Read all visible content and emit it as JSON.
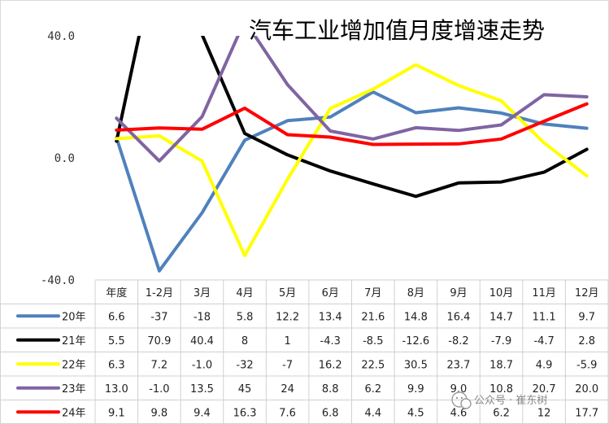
{
  "chart_data": {
    "type": "line",
    "title": "汽车工业增加值月度增速走势",
    "categories": [
      "年度",
      "1-2月",
      "3月",
      "4月",
      "5月",
      "6月",
      "7月",
      "8月",
      "9月",
      "10月",
      "11月",
      "12月"
    ],
    "yticks": [
      "40.0",
      "0.0",
      "-40.0"
    ],
    "ylim": [
      -40,
      40
    ],
    "grid": false,
    "series": [
      {
        "name": "20年",
        "color": "#4f81bd",
        "values": [
          6.6,
          -37,
          -18,
          5.8,
          12.2,
          13.4,
          21.6,
          14.8,
          16.4,
          14.7,
          11.1,
          9.7
        ],
        "labels": [
          "6.6",
          "-37",
          "-18",
          "5.8",
          "12.2",
          "13.4",
          "21.6",
          "14.8",
          "16.4",
          "14.7",
          "11.1",
          "9.7"
        ]
      },
      {
        "name": "21年",
        "color": "#000000",
        "values": [
          5.5,
          70.9,
          40.4,
          8,
          1,
          -4.3,
          -8.5,
          -12.6,
          -8.2,
          -7.9,
          -4.7,
          2.8
        ],
        "labels": [
          "5.5",
          "70.9",
          "40.4",
          "8",
          "1",
          "-4.3",
          "-8.5",
          "-12.6",
          "-8.2",
          "-7.9",
          "-4.7",
          "2.8"
        ]
      },
      {
        "name": "22年",
        "color": "#ffff00",
        "values": [
          6.3,
          7.2,
          -1.0,
          -32,
          -7,
          16.2,
          22.5,
          30.5,
          23.7,
          18.7,
          4.9,
          -5.9
        ],
        "labels": [
          "6.3",
          "7.2",
          "-1.0",
          "-32",
          "-7",
          "16.2",
          "22.5",
          "30.5",
          "23.7",
          "18.7",
          "4.9",
          "-5.9"
        ]
      },
      {
        "name": "23年",
        "color": "#8064a2",
        "values": [
          13.0,
          -1.0,
          13.5,
          45,
          24,
          8.8,
          6.2,
          9.9,
          9.0,
          10.8,
          20.7,
          20.0
        ],
        "labels": [
          "13.0",
          "-1.0",
          "13.5",
          "45",
          "24",
          "8.8",
          "6.2",
          "9.9",
          "9.0",
          "10.8",
          "20.7",
          "20.0"
        ]
      },
      {
        "name": "24年",
        "color": "#ff0000",
        "values": [
          9.1,
          9.8,
          9.4,
          16.3,
          7.6,
          6.8,
          4.4,
          4.5,
          4.6,
          6.2,
          12,
          17.7
        ],
        "labels": [
          "9.1",
          "9.8",
          "9.4",
          "16.3",
          "7.6",
          "6.8",
          "4.4",
          "4.5",
          "4.6",
          "6.2",
          "12",
          "17.7"
        ]
      }
    ]
  },
  "watermark": "公众号 · 崔东树"
}
